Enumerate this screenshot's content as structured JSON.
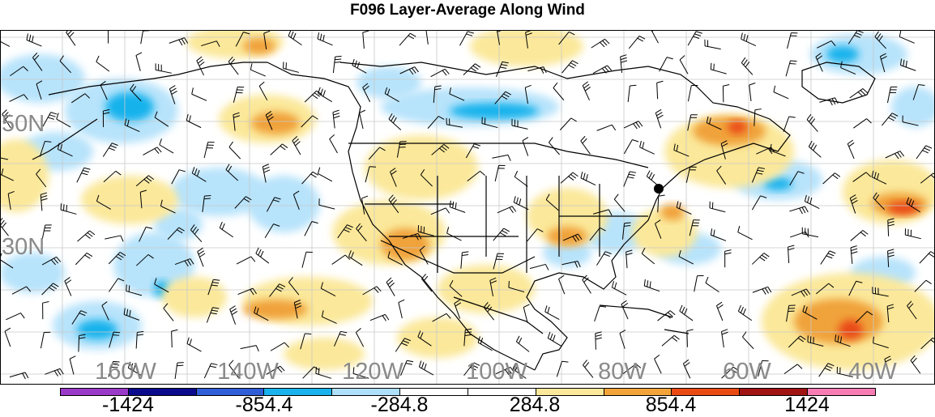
{
  "title": "F096 Layer-Average Along Wind",
  "lat_labels": [
    "50N",
    "30N"
  ],
  "lon_labels": [
    "160W",
    "140W",
    "120W",
    "100W",
    "80W",
    "60W",
    "40W"
  ],
  "colorbar": {
    "labels": [
      "-1424",
      "-854.4",
      "-284.8",
      "284.8",
      "854.4",
      "1424"
    ],
    "colors": [
      "#9a3ac8",
      "#0a0a8c",
      "#2f5ed6",
      "#19b2ec",
      "#aee0fb",
      "#ffffff",
      "#ffffff",
      "#fbe89a",
      "#f2a33a",
      "#ea4a12",
      "#a01414",
      "#f77cb4"
    ]
  },
  "field_colors": {
    "light_blue": "#b7e3fb",
    "mid_blue": "#19b2ec",
    "light_orange": "#fbe89a",
    "mid_orange": "#f0a23a",
    "red": "#ea4a12"
  },
  "legend_markers": {
    "station_dot": "black-dot-marker"
  }
}
